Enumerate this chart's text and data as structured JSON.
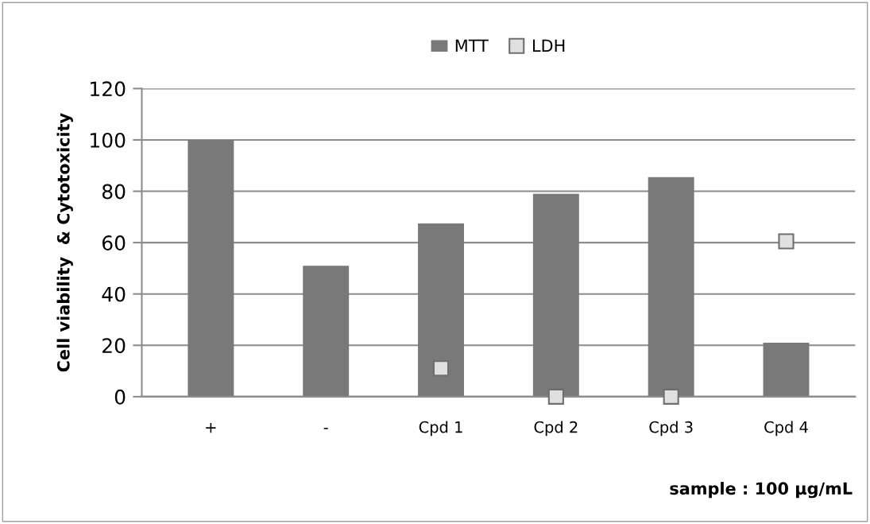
{
  "chart_data": {
    "type": "bar",
    "categories": [
      "+",
      "-",
      "Cpd 1",
      "Cpd 2",
      "Cpd 3",
      "Cpd 4"
    ],
    "series": [
      {
        "name": "MTT",
        "color": "#797979",
        "values": [
          100,
          51,
          67.5,
          79,
          85.5,
          21
        ]
      },
      {
        "name": "LDH",
        "type": "scatter",
        "color": "#e0e0e0",
        "marker": "square",
        "values": [
          null,
          null,
          11,
          0,
          0,
          60.5
        ]
      }
    ],
    "ylabel": "Cell viability  & Cytotoxicity",
    "xlabel": "sample : 100 μg/mL",
    "ylim": [
      0,
      120
    ],
    "yticks": [
      0,
      20,
      40,
      60,
      80,
      100,
      120
    ],
    "grid": "y",
    "legend": "top"
  }
}
